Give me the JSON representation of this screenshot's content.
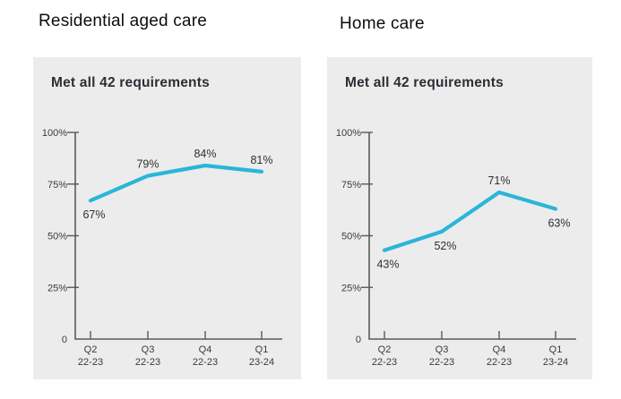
{
  "colors": {
    "page_background": "#ffffff",
    "panel_background": "#ececec",
    "line": "#29b6d9",
    "axis": "#595959",
    "heading_text": "#0d0d0d",
    "panel_title_text": "#2d2e35",
    "tick_label_text": "#3b3b3b",
    "data_label_text": "#2f2f2f"
  },
  "chart_data": [
    {
      "type": "line",
      "heading": "Residential aged care",
      "title": "Met all 42 requirements",
      "categories": [
        "Q2 22-23",
        "Q3 22-23",
        "Q4 22-23",
        "Q1 23-24"
      ],
      "values": [
        67,
        79,
        84,
        81
      ],
      "point_labels": [
        "67%",
        "79%",
        "84%",
        "81%"
      ],
      "label_positions": [
        "below",
        "above",
        "above",
        "above"
      ],
      "y_tick_values": [
        100,
        75,
        50,
        25,
        0
      ],
      "y_tick_labels": [
        "100%",
        "75%",
        "50%",
        "25%",
        "0"
      ],
      "ylim": [
        0,
        100
      ],
      "grid": false,
      "legend": "none",
      "line_color": "#29b6d9"
    },
    {
      "type": "line",
      "heading": "Home care",
      "title": "Met all 42 requirements",
      "categories": [
        "Q2 22-23",
        "Q3 22-23",
        "Q4 22-23",
        "Q1 23-24"
      ],
      "values": [
        43,
        52,
        71,
        63
      ],
      "point_labels": [
        "43%",
        "52%",
        "71%",
        "63%"
      ],
      "label_positions": [
        "below",
        "below",
        "above",
        "below"
      ],
      "y_tick_values": [
        100,
        75,
        50,
        25,
        0
      ],
      "y_tick_labels": [
        "100%",
        "75%",
        "50%",
        "25%",
        "0"
      ],
      "ylim": [
        0,
        100
      ],
      "grid": false,
      "legend": "none",
      "line_color": "#29b6d9"
    }
  ]
}
